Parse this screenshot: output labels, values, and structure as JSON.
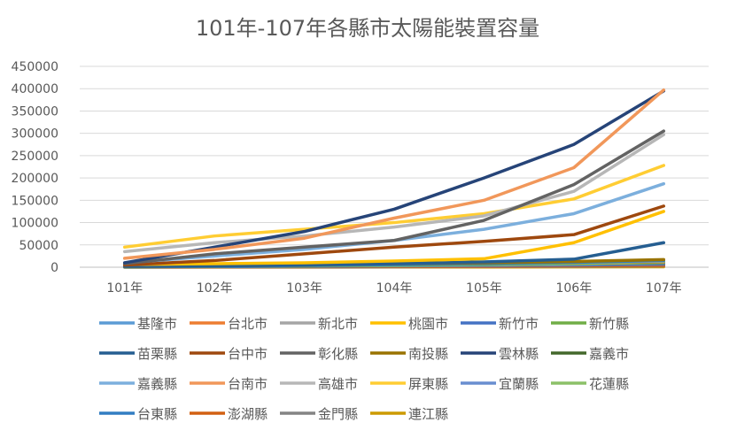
{
  "chart_data": {
    "type": "line",
    "title": "101年-107年各縣市太陽能裝置容量",
    "xlabel": "",
    "ylabel": "",
    "categories": [
      "101年",
      "102年",
      "103年",
      "104年",
      "105年",
      "106年",
      "107年"
    ],
    "y_ticks": [
      "0",
      "50000",
      "100000",
      "150000",
      "200000",
      "250000",
      "300000",
      "350000",
      "400000",
      "450000"
    ],
    "ylim": [
      0,
      450000
    ],
    "grid": true,
    "legend_position": "bottom",
    "series": [
      {
        "name": "基隆市",
        "color": "#5B9BD5",
        "values": [
          500,
          700,
          1000,
          1500,
          2000,
          3000,
          4000
        ]
      },
      {
        "name": "台北市",
        "color": "#ED7D31",
        "values": [
          3000,
          5000,
          6000,
          8000,
          9000,
          10000,
          12000
        ]
      },
      {
        "name": "新北市",
        "color": "#A5A5A5",
        "values": [
          3000,
          4000,
          5000,
          7000,
          9000,
          11000,
          14000
        ]
      },
      {
        "name": "桃園市",
        "color": "#FFC000",
        "values": [
          6000,
          8000,
          10000,
          14000,
          19000,
          55000,
          125000
        ]
      },
      {
        "name": "新竹市",
        "color": "#4472C4",
        "values": [
          1000,
          1500,
          2000,
          3000,
          4000,
          5000,
          7000
        ]
      },
      {
        "name": "新竹縣",
        "color": "#70AD47",
        "values": [
          1500,
          2500,
          3500,
          5000,
          7000,
          10000,
          13000
        ]
      },
      {
        "name": "苗栗縣",
        "color": "#255E91",
        "values": [
          2000,
          3000,
          5000,
          8000,
          12000,
          18000,
          55000
        ]
      },
      {
        "name": "台中市",
        "color": "#9E480E",
        "values": [
          5000,
          15000,
          30000,
          45000,
          58000,
          73000,
          137000
        ]
      },
      {
        "name": "彰化縣",
        "color": "#636363",
        "values": [
          8000,
          30000,
          45000,
          60000,
          105000,
          185000,
          305000
        ]
      },
      {
        "name": "南投縣",
        "color": "#997300",
        "values": [
          1500,
          3000,
          5000,
          8000,
          10000,
          13000,
          17000
        ]
      },
      {
        "name": "雲林縣",
        "color": "#264478",
        "values": [
          10000,
          45000,
          80000,
          130000,
          200000,
          275000,
          395000
        ]
      },
      {
        "name": "嘉義市",
        "color": "#43682B",
        "values": [
          1000,
          2000,
          3000,
          5000,
          6000,
          8000,
          10000
        ]
      },
      {
        "name": "嘉義縣",
        "color": "#7CAFDD",
        "values": [
          10000,
          25000,
          40000,
          60000,
          85000,
          120000,
          187000
        ]
      },
      {
        "name": "台南市",
        "color": "#F1975A",
        "values": [
          20000,
          40000,
          65000,
          110000,
          150000,
          223000,
          397000
        ]
      },
      {
        "name": "高雄市",
        "color": "#B7B7B7",
        "values": [
          35000,
          55000,
          70000,
          90000,
          115000,
          170000,
          297000
        ]
      },
      {
        "name": "屏東縣",
        "color": "#FFCD33",
        "values": [
          45000,
          70000,
          85000,
          100000,
          120000,
          153000,
          228000
        ]
      },
      {
        "name": "宜蘭縣",
        "color": "#698ED0",
        "values": [
          1000,
          2000,
          3000,
          4000,
          5000,
          7000,
          9000
        ]
      },
      {
        "name": "花蓮縣",
        "color": "#8CC168",
        "values": [
          1000,
          2000,
          3000,
          4000,
          6000,
          8000,
          11000
        ]
      },
      {
        "name": "台東縣",
        "color": "#327DC2",
        "values": [
          1000,
          2000,
          4000,
          6000,
          8000,
          11000,
          15000
        ]
      },
      {
        "name": "澎湖縣",
        "color": "#D26012",
        "values": [
          500,
          800,
          1000,
          1500,
          2000,
          3000,
          4000
        ]
      },
      {
        "name": "金門縣",
        "color": "#848484",
        "values": [
          300,
          500,
          700,
          1000,
          1500,
          2000,
          3000
        ]
      },
      {
        "name": "連江縣",
        "color": "#CC9A00",
        "values": [
          100,
          200,
          300,
          400,
          500,
          700,
          1000
        ]
      }
    ]
  }
}
